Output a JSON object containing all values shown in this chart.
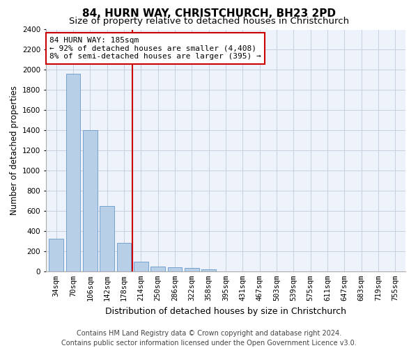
{
  "title": "84, HURN WAY, CHRISTCHURCH, BH23 2PD",
  "subtitle": "Size of property relative to detached houses in Christchurch",
  "xlabel": "Distribution of detached houses by size in Christchurch",
  "ylabel": "Number of detached properties",
  "categories": [
    "34sqm",
    "70sqm",
    "106sqm",
    "142sqm",
    "178sqm",
    "214sqm",
    "250sqm",
    "286sqm",
    "322sqm",
    "358sqm",
    "395sqm",
    "431sqm",
    "467sqm",
    "503sqm",
    "539sqm",
    "575sqm",
    "611sqm",
    "647sqm",
    "683sqm",
    "719sqm",
    "755sqm"
  ],
  "values": [
    325,
    1960,
    1400,
    650,
    280,
    100,
    47,
    38,
    35,
    22,
    0,
    0,
    0,
    0,
    0,
    0,
    0,
    0,
    0,
    0,
    0
  ],
  "bar_color": "#b8cfe8",
  "bar_edge_color": "#6699cc",
  "vline_color": "#cc0000",
  "annotation_line1": "84 HURN WAY: 185sqm",
  "annotation_line2": "← 92% of detached houses are smaller (4,408)",
  "annotation_line3": "8% of semi-detached houses are larger (395) →",
  "annotation_box_color": "#cc0000",
  "ylim": [
    0,
    2400
  ],
  "yticks": [
    0,
    200,
    400,
    600,
    800,
    1000,
    1200,
    1400,
    1600,
    1800,
    2000,
    2200,
    2400
  ],
  "footer": "Contains HM Land Registry data © Crown copyright and database right 2024.\nContains public sector information licensed under the Open Government Licence v3.0.",
  "background_color": "#eef2fa",
  "grid_color": "#c8d0e0",
  "title_fontsize": 11,
  "subtitle_fontsize": 9.5,
  "ylabel_fontsize": 8.5,
  "xlabel_fontsize": 9,
  "tick_fontsize": 7.5,
  "footer_fontsize": 7
}
